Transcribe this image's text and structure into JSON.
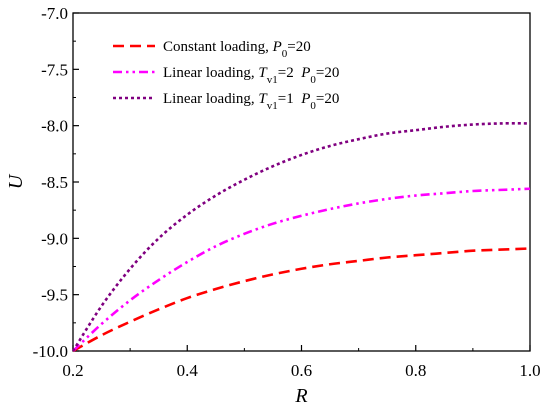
{
  "chart_data": {
    "type": "line",
    "xlabel": "R",
    "ylabel": "U",
    "xlim": [
      0.2,
      1.0
    ],
    "ylim": [
      -10.0,
      -7.0
    ],
    "xticks": [
      0.2,
      0.4,
      0.6,
      0.8,
      1.0
    ],
    "yticks": [
      -10.0,
      -9.5,
      -9.0,
      -8.5,
      -8.0,
      -7.5,
      -7.0
    ],
    "xtick_labels": [
      "0.2",
      "0.4",
      "0.6",
      "0.8",
      "1.0"
    ],
    "ytick_labels": [
      "-10.0",
      "-9.5",
      "-9.0",
      "-8.5",
      "-8.0",
      "-7.5",
      "-7.0"
    ],
    "grid": false,
    "legend_position": "top-left",
    "series": [
      {
        "name": "Constant loading, P0=20",
        "legend": {
          "prefix": "Constant loading, ",
          "var": "P",
          "sub": "0",
          "suffix": "=20"
        },
        "color": "#ff0000",
        "dash": "dashed",
        "x": [
          0.2,
          0.25,
          0.3,
          0.35,
          0.4,
          0.45,
          0.5,
          0.55,
          0.6,
          0.65,
          0.7,
          0.75,
          0.8,
          0.85,
          0.9,
          0.95,
          1.0
        ],
        "y": [
          -10.0,
          -9.86,
          -9.74,
          -9.63,
          -9.53,
          -9.45,
          -9.38,
          -9.32,
          -9.27,
          -9.23,
          -9.2,
          -9.17,
          -9.15,
          -9.13,
          -9.11,
          -9.1,
          -9.09
        ]
      },
      {
        "name": "Linear loading, Tv1=2, P0=20",
        "legend": {
          "prefix": "Linear loading, ",
          "var": "T",
          "sub": "v1",
          "mid": "=2  ",
          "var2": "P",
          "sub2": "0",
          "suffix": "=20"
        },
        "color": "#ff00ff",
        "dash": "dash-dot-dot",
        "x": [
          0.2,
          0.25,
          0.3,
          0.35,
          0.4,
          0.45,
          0.5,
          0.55,
          0.6,
          0.65,
          0.7,
          0.75,
          0.8,
          0.85,
          0.9,
          0.95,
          1.0
        ],
        "y": [
          -10.0,
          -9.76,
          -9.55,
          -9.37,
          -9.21,
          -9.07,
          -8.96,
          -8.87,
          -8.8,
          -8.74,
          -8.69,
          -8.65,
          -8.62,
          -8.6,
          -8.58,
          -8.57,
          -8.56
        ]
      },
      {
        "name": "Linear loading, Tv1=1, P0=20",
        "legend": {
          "prefix": "Linear loading, ",
          "var": "T",
          "sub": "v1",
          "mid": "=1  ",
          "var2": "P",
          "sub2": "0",
          "suffix": "=20"
        },
        "color": "#800080",
        "dash": "dotted",
        "x": [
          0.2,
          0.25,
          0.3,
          0.35,
          0.4,
          0.45,
          0.5,
          0.55,
          0.6,
          0.65,
          0.7,
          0.75,
          0.8,
          0.85,
          0.9,
          0.95,
          1.0
        ],
        "y": [
          -10.0,
          -9.6,
          -9.27,
          -9.0,
          -8.79,
          -8.62,
          -8.48,
          -8.36,
          -8.26,
          -8.18,
          -8.12,
          -8.07,
          -8.04,
          -8.01,
          -7.99,
          -7.98,
          -7.98
        ]
      }
    ]
  }
}
